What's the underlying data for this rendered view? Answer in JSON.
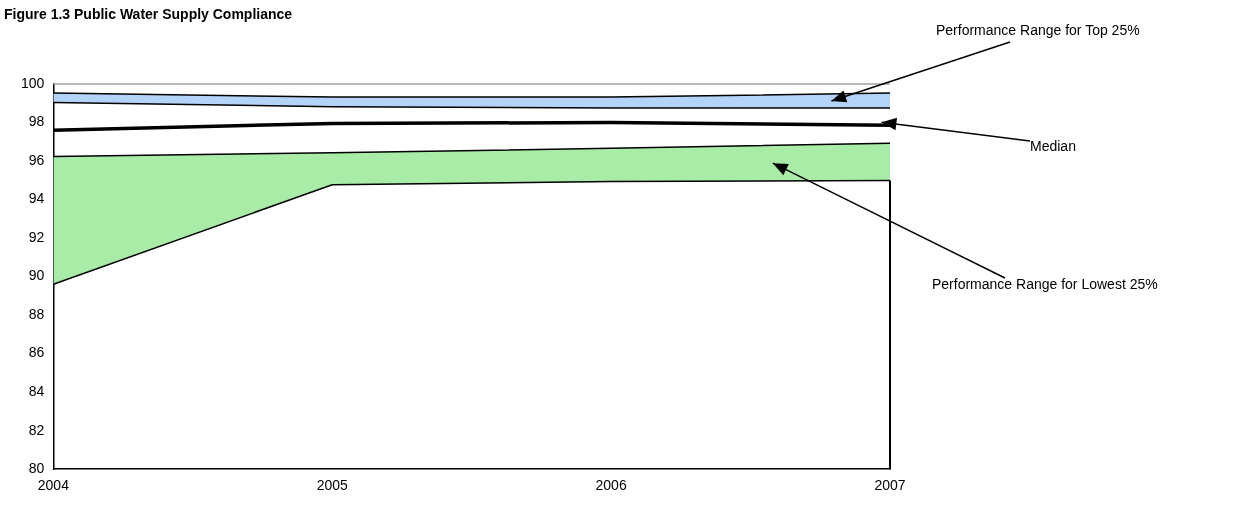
{
  "chart_data": {
    "type": "area",
    "title": "Figure 1.3  Public Water Supply Compliance",
    "x": [
      2004,
      2005,
      2006,
      2007
    ],
    "series": [
      {
        "type": "line",
        "color": "#000000",
        "values": [
          89.6,
          94.77,
          94.94,
          94.99
        ]
      },
      {
        "name": "Performance Range for Lowest 25%",
        "color": "#a8eca8",
        "values": [
          96.23,
          96.43,
          96.66,
          96.92
        ]
      },
      {
        "name": "Median",
        "type": "line",
        "color": "#000000",
        "values": [
          97.6,
          97.95,
          98.0,
          97.86
        ]
      },
      {
        "type": "line",
        "color": "#000000",
        "values": [
          99.04,
          98.82,
          98.75,
          98.75
        ]
      },
      {
        "name": "Performance Range for Top 25%",
        "color": "#b3d3f8",
        "values": [
          99.53,
          99.32,
          99.32,
          99.53
        ]
      }
    ],
    "xlim": [
      2004,
      2007
    ],
    "xticks": [
      2004,
      2005,
      2006,
      2007
    ],
    "ylim": [
      80,
      100
    ],
    "yticks": [
      80,
      82,
      84,
      86,
      88,
      90,
      92,
      94,
      96,
      98,
      100
    ],
    "grid": false,
    "legend": false,
    "marker": "none",
    "line_style": "solid"
  }
}
